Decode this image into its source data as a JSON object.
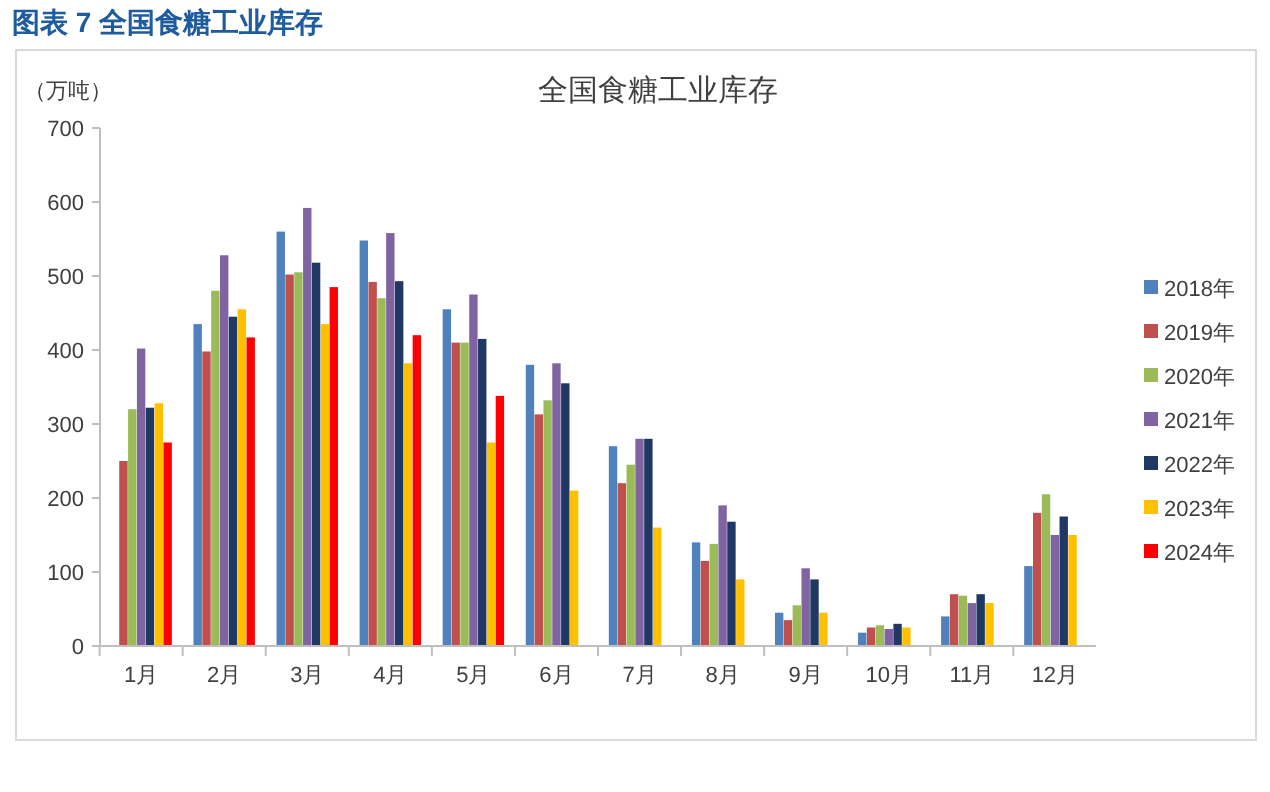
{
  "chart_data": {
    "type": "bar",
    "title": "全国食糖工业库存",
    "ylabel": "（万吨）",
    "annotations": [
      "图表 7  全国食糖工业库存"
    ],
    "categories": [
      "1月",
      "2月",
      "3月",
      "4月",
      "5月",
      "6月",
      "7月",
      "8月",
      "9月",
      "10月",
      "11月",
      "12月"
    ],
    "series": [
      {
        "name": "2018年",
        "color": "#4f81bd",
        "values": [
          null,
          435,
          560,
          548,
          455,
          380,
          270,
          140,
          45,
          18,
          40,
          108
        ]
      },
      {
        "name": "2019年",
        "color": "#c0504d",
        "values": [
          250,
          398,
          502,
          492,
          410,
          313,
          220,
          115,
          35,
          25,
          70,
          180
        ]
      },
      {
        "name": "2020年",
        "color": "#9bbb59",
        "values": [
          320,
          480,
          505,
          470,
          410,
          332,
          245,
          138,
          55,
          28,
          68,
          205
        ]
      },
      {
        "name": "2021年",
        "color": "#8064a2",
        "values": [
          402,
          528,
          592,
          558,
          475,
          382,
          280,
          190,
          105,
          23,
          58,
          150
        ]
      },
      {
        "name": "2022年",
        "color": "#1f3864",
        "values": [
          322,
          445,
          518,
          493,
          415,
          355,
          280,
          168,
          90,
          30,
          70,
          175
        ]
      },
      {
        "name": "2023年",
        "color": "#ffc000",
        "values": [
          328,
          455,
          435,
          382,
          275,
          210,
          160,
          90,
          45,
          25,
          58,
          150
        ]
      },
      {
        "name": "2024年",
        "color": "#ff0000",
        "values": [
          275,
          417,
          485,
          420,
          338,
          null,
          null,
          null,
          null,
          null,
          null,
          null
        ]
      }
    ],
    "ylim": [
      0,
      700
    ],
    "yticks": [
      0,
      100,
      200,
      300,
      400,
      500,
      600,
      700
    ],
    "grid": false,
    "legend": "right"
  }
}
